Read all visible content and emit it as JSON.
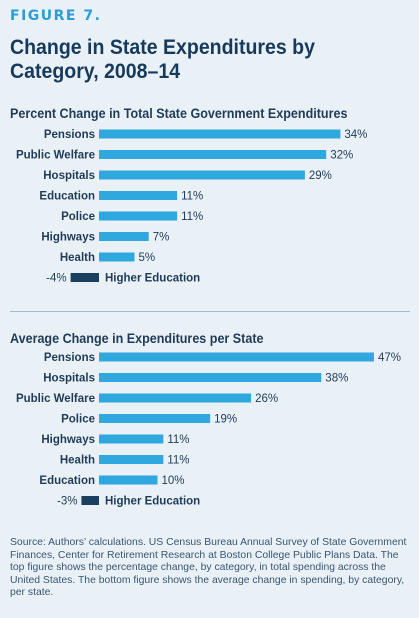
{
  "figure_label": "FIGURE 7.",
  "title": "Change in State Expenditures by Category, 2008–14",
  "source_note": "Source: Authors’ calculations. US Census Bureau Annual Survey of State Government Finances, Center for Retirement Research at Boston College Public Plans Data. The top figure shows the percentage change, by category, in total spending across the United States. The bottom figure shows the average change in spending, by category, per state.",
  "colors": {
    "positive": "#2ea8df",
    "negative": "#1b3f5e",
    "accent": "#2b9dd3"
  },
  "chart_data": [
    {
      "type": "bar",
      "orientation": "horizontal",
      "title": "Percent Change in Total State Government Expenditures",
      "categories": [
        "Pensions",
        "Public Welfare",
        "Hospitals",
        "Education",
        "Police",
        "Highways",
        "Health",
        "Higher Education"
      ],
      "values": [
        34,
        32,
        29,
        11,
        11,
        7,
        5,
        -4
      ],
      "value_labels": [
        "34%",
        "32%",
        "29%",
        "11%",
        "11%",
        "7%",
        "5%",
        "-4%"
      ],
      "unit": "%",
      "grid": false,
      "legend": "none"
    },
    {
      "type": "bar",
      "orientation": "horizontal",
      "title": "Average Change in Expenditures per State",
      "categories": [
        "Pensions",
        "Hospitals",
        "Public Welfare",
        "Police",
        "Highways",
        "Health",
        "Education",
        "Higher Education"
      ],
      "values": [
        47,
        38,
        26,
        19,
        11,
        11,
        10,
        -3
      ],
      "value_labels": [
        "47%",
        "38%",
        "26%",
        "19%",
        "11%",
        "11%",
        "10%",
        "-3%"
      ],
      "unit": "%",
      "grid": false,
      "legend": "none"
    }
  ]
}
